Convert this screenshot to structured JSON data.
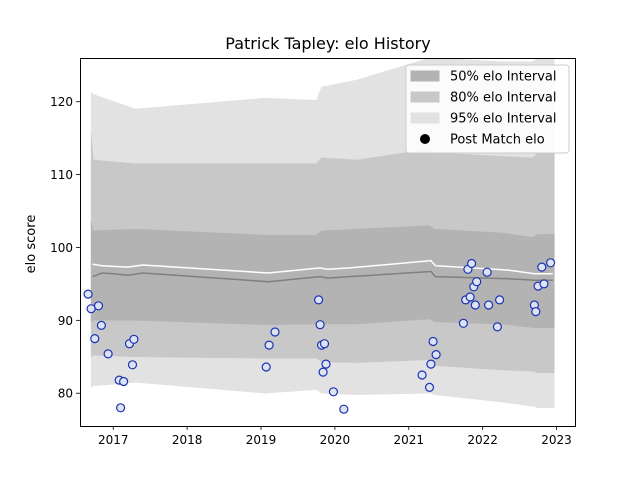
{
  "chart_data": {
    "type": "scatter",
    "title": "Patrick Tapley: elo History",
    "xlabel": "",
    "ylabel": "elo score",
    "xlim": [
      2016.55,
      2023.25
    ],
    "ylim": [
      75.5,
      126
    ],
    "x_ticks": [
      2017,
      2018,
      2019,
      2020,
      2021,
      2022,
      2023
    ],
    "x_tick_labels": [
      "2017",
      "2018",
      "2019",
      "2020",
      "2021",
      "2022",
      "2023"
    ],
    "y_ticks": [
      80,
      90,
      100,
      110,
      120
    ],
    "y_tick_labels": [
      "80",
      "90",
      "100",
      "110",
      "120"
    ],
    "grid": false,
    "legend_position": "top-right",
    "legend": [
      {
        "label": "50% elo Interval",
        "kind": "patch",
        "color": "#b3b3b3"
      },
      {
        "label": "80% elo Interval",
        "kind": "patch",
        "color": "#c8c8c8"
      },
      {
        "label": "95% elo Interval",
        "kind": "patch",
        "color": "#e2e2e2"
      },
      {
        "label": "Post Match elo",
        "kind": "marker",
        "color": "#000000"
      }
    ],
    "colors": {
      "band_95": "#e2e2e2",
      "band_80": "#c8c8c8",
      "band_50": "#b3b3b3",
      "median_line": "#808080",
      "mean_line": "#ffffff",
      "point_face": "#dde3f2",
      "point_edge": "#1a33b3"
    },
    "band_x": [
      2016.7,
      2016.73,
      2017.3,
      2019.05,
      2019.75,
      2019.82,
      2020.3,
      2021.28,
      2021.35,
      2022.25,
      2022.68,
      2022.75,
      2022.97
    ],
    "band_95": {
      "lower": [
        80.8,
        81.0,
        81.5,
        80.0,
        80.5,
        80.0,
        79.8,
        80.0,
        79.8,
        78.8,
        78.2,
        78.0,
        78.0
      ],
      "upper": [
        121.3,
        121.0,
        119.0,
        120.5,
        120.2,
        122.0,
        123.0,
        126.0,
        126.0,
        125.5,
        125.5,
        126.0,
        126.0
      ]
    },
    "band_80": {
      "lower": [
        85.0,
        85.2,
        85.0,
        84.8,
        84.8,
        84.3,
        84.2,
        84.6,
        83.8,
        83.2,
        83.0,
        82.8,
        82.8
      ],
      "upper": [
        115.5,
        112.0,
        111.5,
        111.5,
        111.5,
        112.3,
        112.0,
        113.5,
        113.0,
        112.5,
        112.3,
        113.0,
        113.0
      ]
    },
    "band_50": {
      "lower": [
        89.8,
        90.0,
        90.0,
        89.4,
        89.5,
        89.5,
        89.5,
        90.2,
        89.8,
        89.5,
        89.0,
        89.0,
        89.0
      ],
      "upper": [
        103.5,
        102.3,
        102.5,
        101.7,
        101.7,
        102.3,
        102.5,
        103.0,
        102.5,
        102.0,
        101.4,
        101.8,
        101.8
      ]
    },
    "median_line": {
      "x": [
        2016.72,
        2016.85,
        2017.0,
        2017.2,
        2017.4,
        2019.1,
        2019.8,
        2019.9,
        2020.2,
        2021.3,
        2021.36,
        2022.35,
        2022.7,
        2022.95
      ],
      "y": [
        96.0,
        96.5,
        96.4,
        96.2,
        96.5,
        95.3,
        96.0,
        95.8,
        96.0,
        96.7,
        96.0,
        95.7,
        95.5,
        95.5
      ]
    },
    "mean_line": {
      "x": [
        2016.72,
        2016.85,
        2017.0,
        2017.2,
        2017.4,
        2019.1,
        2019.8,
        2019.9,
        2020.2,
        2021.3,
        2021.36,
        2022.35,
        2022.7,
        2022.95
      ],
      "y": [
        97.7,
        97.5,
        97.4,
        97.3,
        97.6,
        96.5,
        97.2,
        97.0,
        97.2,
        98.2,
        97.5,
        96.9,
        96.4,
        96.4
      ]
    },
    "series": [
      {
        "name": "Post Match elo",
        "x": [
          2016.66,
          2016.7,
          2016.75,
          2016.8,
          2016.84,
          2016.93,
          2017.08,
          2017.1,
          2017.14,
          2017.22,
          2017.26,
          2017.28,
          2019.07,
          2019.11,
          2019.19,
          2019.78,
          2019.8,
          2019.82,
          2019.84,
          2019.86,
          2019.88,
          2019.98,
          2020.12,
          2021.18,
          2021.28,
          2021.3,
          2021.33,
          2021.37,
          2021.74,
          2021.77,
          2021.8,
          2021.83,
          2021.85,
          2021.88,
          2021.9,
          2021.92,
          2022.06,
          2022.08,
          2022.2,
          2022.23,
          2022.7,
          2022.72,
          2022.75,
          2022.8,
          2022.83,
          2022.92
        ],
        "y": [
          93.6,
          91.6,
          87.5,
          92.0,
          89.3,
          85.4,
          81.8,
          78.0,
          81.6,
          86.8,
          83.9,
          87.4,
          83.6,
          86.6,
          88.4,
          92.8,
          89.4,
          86.6,
          82.9,
          86.8,
          84.0,
          80.2,
          77.8,
          82.5,
          80.8,
          84.0,
          87.1,
          85.3,
          89.6,
          92.8,
          97.0,
          93.2,
          97.8,
          94.6,
          92.1,
          95.3,
          96.6,
          92.1,
          89.1,
          92.8,
          92.1,
          91.2,
          94.7,
          97.3,
          95.0,
          97.9
        ]
      }
    ]
  }
}
